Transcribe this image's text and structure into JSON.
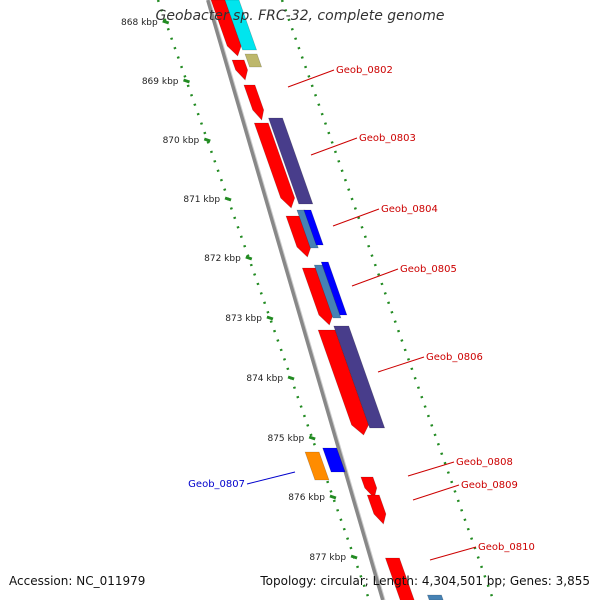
{
  "title": "Geobacter sp. FRC-32, complete genome",
  "footer": {
    "accession": "Accession: NC_011979",
    "summary": "Topology: circular; Length: 4,304,501 bp; Genes: 3,855"
  },
  "ruler": {
    "tick_labels": [
      "868 kbp",
      "869 kbp",
      "870 kbp",
      "871 kbp",
      "872 kbp",
      "873 kbp",
      "874 kbp",
      "875 kbp",
      "876 kbp",
      "877 kbp"
    ]
  },
  "genes": [
    {
      "name": "Geob_0802",
      "color": "#cc0000"
    },
    {
      "name": "Geob_0803",
      "color": "#cc0000"
    },
    {
      "name": "Geob_0804",
      "color": "#cc0000"
    },
    {
      "name": "Geob_0805",
      "color": "#cc0000"
    },
    {
      "name": "Geob_0806",
      "color": "#cc0000"
    },
    {
      "name": "Geob_0807",
      "color": "#0000cc"
    },
    {
      "name": "Geob_0808",
      "color": "#cc0000"
    },
    {
      "name": "Geob_0809",
      "color": "#cc0000"
    },
    {
      "name": "Geob_0810",
      "color": "#cc0000"
    }
  ],
  "colors": {
    "cds_forward": "#ff0000",
    "cds_reverse": "#0000ff",
    "backbone": "#888888",
    "ruler_dots": "#228b22",
    "feature_cyan": "#00e5ee",
    "feature_khaki": "#bdb76b",
    "feature_slate": "#483d8b",
    "feature_steel": "#4682b4",
    "feature_orange": "#ff8c00"
  }
}
